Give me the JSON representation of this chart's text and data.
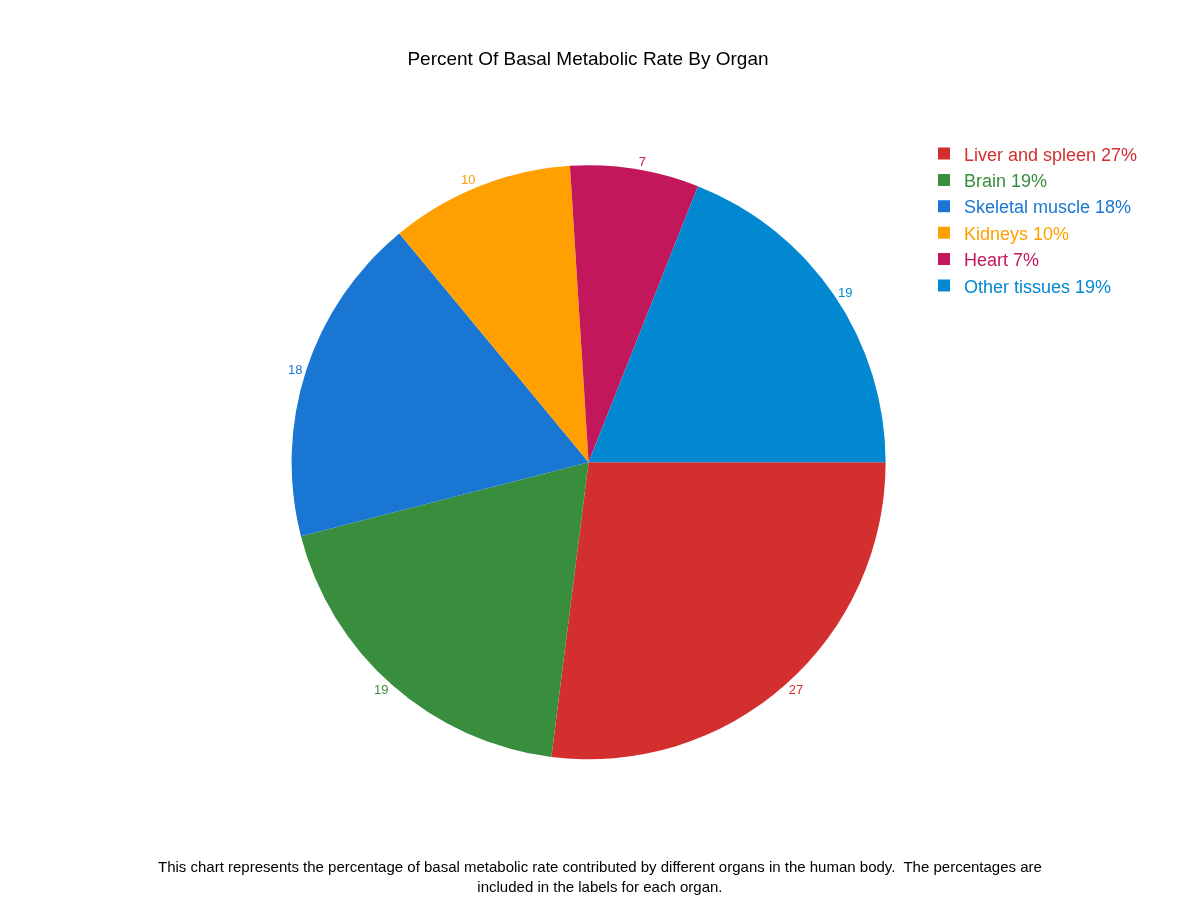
{
  "chart_data": {
    "type": "pie",
    "title": "Percent Of Basal Metabolic Rate By Organ",
    "categories": [
      "Liver and spleen 27%",
      "Brain 19%",
      "Skeletal muscle 18%",
      "Kidneys 10%",
      "Heart 7%",
      "Other tissues 19%"
    ],
    "values": [
      27,
      19,
      18,
      10,
      7,
      19
    ],
    "colors": [
      "#d32f2f",
      "#388e3c",
      "#1976d2",
      "#ffa000",
      "#c2185b",
      "#0288d1"
    ],
    "data_labels": true,
    "legend": "top right",
    "annotations": [
      "This chart represents the percentage of basal metabolic rate contributed by different organs in the human body. The percentages are included in the labels for each organ."
    ]
  }
}
